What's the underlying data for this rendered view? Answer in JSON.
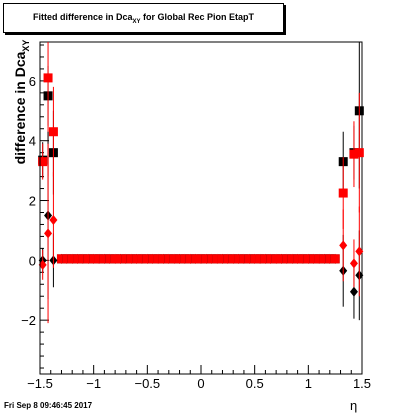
{
  "header": {
    "title_main": "Fitted difference in Dca",
    "title_sub": "XY",
    "title_rest": " for Global Rec Pion EtapT"
  },
  "footer": {
    "timestamp": "Fri Sep  8 09:46:45 2017"
  },
  "chart_data": {
    "type": "scatter",
    "title": "Fitted difference in Dca_XY for Global Rec Pion EtapT",
    "xlabel": "η",
    "ylabel_main": "difference in Dca",
    "ylabel_sub": "XY",
    "xlim": [
      -1.5,
      1.5
    ],
    "ylim": [
      -3.8,
      7.3
    ],
    "xticks": [
      -1.5,
      -1,
      -0.5,
      0,
      0.5,
      1,
      1.5
    ],
    "xtick_labels": [
      "−1.5",
      "−1",
      "−0.5",
      "0",
      "0.5",
      "1",
      "1.5"
    ],
    "yticks": [
      -2,
      0,
      2,
      4,
      6
    ],
    "ytick_labels": [
      "−2",
      "0",
      "2",
      "4",
      "6"
    ],
    "colors": {
      "black": "#000000",
      "red": "#ff0000"
    },
    "flat_region": {
      "x_start": -1.3,
      "x_end": 1.25,
      "step": 0.05,
      "value": 0.05,
      "error": 0.08
    },
    "series": [
      {
        "color": "black",
        "marker": "square",
        "points": [
          {
            "x": -1.475,
            "y": 3.35,
            "err": 0.6
          },
          {
            "x": -1.425,
            "y": 5.5,
            "err": 1.0
          },
          {
            "x": -1.375,
            "y": 3.6,
            "err": 1.4
          },
          {
            "x": 1.325,
            "y": 3.3,
            "err": 1.0
          },
          {
            "x": 1.425,
            "y": 3.6,
            "err": 0.9
          },
          {
            "x": 1.475,
            "y": 5.0,
            "err": 2.6
          }
        ]
      },
      {
        "color": "red",
        "marker": "square",
        "points": [
          {
            "x": -1.475,
            "y": 3.3,
            "err": 0.6
          },
          {
            "x": -1.425,
            "y": 6.1,
            "err": 3.3
          },
          {
            "x": -1.375,
            "y": 4.3,
            "err": 1.5
          },
          {
            "x": 1.325,
            "y": 2.25,
            "err": 1.2
          },
          {
            "x": 1.425,
            "y": 3.55,
            "err": 1.1
          },
          {
            "x": 1.475,
            "y": 3.6,
            "err": 2.0
          }
        ]
      },
      {
        "color": "black",
        "marker": "diamond",
        "points": [
          {
            "x": -1.475,
            "y": 0.0,
            "err": 0.4
          },
          {
            "x": -1.425,
            "y": 1.5,
            "err": 2.8
          },
          {
            "x": -1.375,
            "y": 0.0,
            "err": 0.9
          },
          {
            "x": 1.325,
            "y": -0.35,
            "err": 1.2
          },
          {
            "x": 1.425,
            "y": -1.05,
            "err": 0.9
          },
          {
            "x": 1.475,
            "y": -0.5,
            "err": 1.5
          }
        ]
      },
      {
        "color": "red",
        "marker": "diamond",
        "points": [
          {
            "x": -1.475,
            "y": -0.15,
            "err": 0.5
          },
          {
            "x": -1.425,
            "y": 0.9,
            "err": 3.0
          },
          {
            "x": -1.375,
            "y": 1.35,
            "err": 1.6
          },
          {
            "x": 1.325,
            "y": 0.5,
            "err": 1.2
          },
          {
            "x": 1.425,
            "y": -0.1,
            "err": 0.8
          },
          {
            "x": 1.475,
            "y": 0.3,
            "err": 1.5
          }
        ]
      }
    ]
  }
}
